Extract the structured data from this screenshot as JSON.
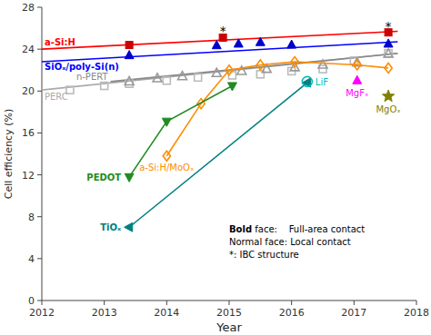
{
  "chart_data": {
    "type": "line",
    "xlabel": "Year",
    "ylabel": "Cell efficiency (%)",
    "xlim": [
      2012,
      2018
    ],
    "ylim": [
      0,
      28
    ],
    "xticks": [
      2012,
      2013,
      2014,
      2015,
      2016,
      2017,
      2018
    ],
    "yticks": [
      0,
      4,
      8,
      12,
      16,
      20,
      24,
      28
    ],
    "grid": false,
    "series": [
      {
        "name": "a-Si:H",
        "type": "line",
        "color": "#ff0000",
        "x": [
          2012.0,
          2017.7
        ],
        "values": [
          24.0,
          25.7
        ]
      },
      {
        "name": "SiOₓ/poly-Si(n)",
        "type": "line",
        "color": "#0000ff",
        "x": [
          2012.0,
          2017.7
        ],
        "values": [
          22.8,
          24.7
        ]
      },
      {
        "name": "PERC",
        "type": "line",
        "color": "#aaaaaa",
        "x": [
          2012.0,
          2017.7
        ],
        "values": [
          20.1,
          23.6
        ]
      },
      {
        "name": "n-PERT",
        "type": "line",
        "color": "#888888",
        "x": [
          2013.1,
          2017.7
        ],
        "values": [
          20.9,
          23.6
        ]
      },
      {
        "type": "scatter",
        "color": "#bbbbbb",
        "marker": "square-open",
        "x": [
          2012.45,
          2013.0,
          2013.4,
          2014.0,
          2014.5,
          2015.05,
          2015.5,
          2016.0,
          2016.5,
          2017.0,
          2017.55
        ],
        "values": [
          20.1,
          20.5,
          20.7,
          21.0,
          21.3,
          21.5,
          21.6,
          21.9,
          22.1,
          22.9,
          23.6
        ]
      },
      {
        "type": "scatter",
        "color": "#999999",
        "marker": "triangle-up-open",
        "x": [
          2013.4,
          2013.85,
          2014.25,
          2014.8,
          2015.2,
          2015.6,
          2016.05,
          2016.5,
          2017.05,
          2017.55
        ],
        "values": [
          20.9,
          21.2,
          21.4,
          21.7,
          21.9,
          22.1,
          22.25,
          22.5,
          22.7,
          23.55
        ]
      },
      {
        "name": "a-Si:H/MoOₓ",
        "type": "line",
        "color": "#ff8c00",
        "marker": "diamond-open",
        "x": [
          2014.0,
          2014.55,
          2015.0,
          2015.5,
          2016.05,
          2017.05,
          2017.55
        ],
        "values": [
          13.8,
          18.8,
          22.0,
          22.5,
          22.8,
          22.5,
          22.2
        ]
      },
      {
        "name": "PEDOT",
        "type": "line",
        "color": "#228b22",
        "marker": "triangle-down",
        "x": [
          2013.4,
          2014.0,
          2015.05
        ],
        "values": [
          11.8,
          17.1,
          20.5
        ]
      },
      {
        "name": "TiOₓ",
        "type": "line",
        "color": "#008080",
        "marker": "triangle-left",
        "x": [
          2013.4,
          2016.25
        ],
        "values": [
          7.0,
          20.8
        ]
      },
      {
        "type": "scatter",
        "color": "#cc0000",
        "marker": "square",
        "x": [
          2013.4,
          2014.9,
          2017.55
        ],
        "values": [
          24.4,
          25.1,
          25.6
        ],
        "ibc": [
          null,
          "*",
          "*"
        ]
      },
      {
        "type": "scatter",
        "color": "#0000cc",
        "marker": "triangle-up",
        "x": [
          2013.4,
          2014.8,
          2015.15,
          2015.5,
          2016.0,
          2017.55
        ],
        "values": [
          23.4,
          24.35,
          24.5,
          24.65,
          24.4,
          24.5
        ]
      },
      {
        "name": "LiF",
        "type": "scatter",
        "color": "#00bbbb",
        "marker": "circle-open",
        "x": [
          2016.25
        ],
        "values": [
          20.9
        ]
      },
      {
        "name": "MgFₓ",
        "type": "scatter",
        "color": "#ff00ff",
        "marker": "triangle-up",
        "x": [
          2017.05
        ],
        "values": [
          21.0
        ]
      },
      {
        "name": "MgOₓ",
        "type": "scatter",
        "color": "#808000",
        "marker": "star",
        "x": [
          2017.55
        ],
        "values": [
          19.5
        ]
      }
    ],
    "annotations": [
      [
        "Bold",
        " face:    Full-area contact"
      ],
      [
        "Normal face: Local contact"
      ],
      [
        "*: IBC structure"
      ]
    ]
  }
}
